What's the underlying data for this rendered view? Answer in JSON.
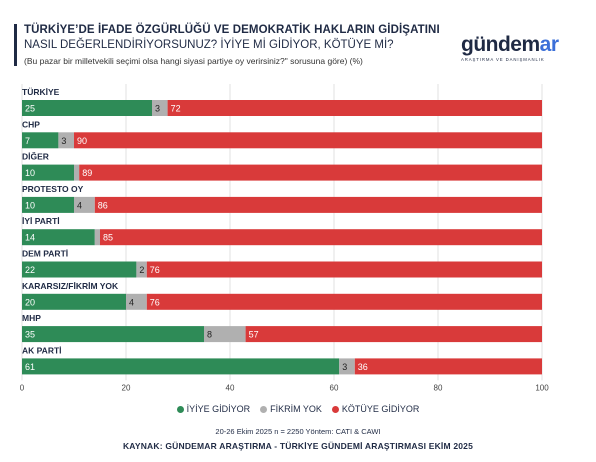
{
  "header": {
    "title_line1": "TÜRKİYE’DE İFADE ÖZGÜRLÜĞÜ VE DEMOKRATİK HAKLARIN GİDİŞATINI",
    "title_line2": "NASIL DEĞERLENDİRİYORSUNUZ? İYİYE Mİ GİDİYOR, KÖTÜYE Mİ?",
    "subtitle": "(Bu pazar bir milletvekili seçimi olsa hangi siyasi partiye oy verirsiniz?\" sorusuna göre) (%)"
  },
  "logo": {
    "main_prefix": "gündem",
    "main_highlight": "ar",
    "tagline": "ARAŞTIRMA VE DANIŞMANLIK"
  },
  "chart_data": {
    "type": "bar",
    "orientation": "horizontal",
    "stacked": true,
    "categories": [
      "TÜRKİYE",
      "CHP",
      "DİĞER",
      "PROTESTO OY",
      "İYİ PARTİ",
      "DEM PARTİ",
      "KARARSIZ/FİKRİM YOK",
      "MHP",
      "AK PARTİ"
    ],
    "series": [
      {
        "name": "İYİYE GİDİYOR",
        "color": "#2e8b57",
        "values": [
          25,
          7,
          10,
          10,
          14,
          22,
          20,
          35,
          61
        ]
      },
      {
        "name": "FİKRİM YOK",
        "color": "#b0b0b0",
        "values": [
          3,
          3,
          1,
          4,
          1,
          2,
          4,
          8,
          3
        ]
      },
      {
        "name": "KÖTÜYE GİDİYOR",
        "color": "#d93a3a",
        "values": [
          72,
          90,
          89,
          86,
          85,
          76,
          76,
          57,
          36
        ]
      }
    ],
    "data_labels": [
      [
        "25",
        "3",
        "72"
      ],
      [
        "7",
        "3",
        "90"
      ],
      [
        "10",
        "",
        "89"
      ],
      [
        "10",
        "4",
        "86"
      ],
      [
        "14",
        "",
        "85"
      ],
      [
        "22",
        "2",
        "76"
      ],
      [
        "20",
        "4",
        "76"
      ],
      [
        "35",
        "8",
        "57"
      ],
      [
        "61",
        "3",
        "36"
      ]
    ],
    "xlim": [
      0,
      100
    ],
    "xticks": [
      0,
      20,
      40,
      60,
      80,
      100
    ],
    "grid": true,
    "legend_position": "bottom-center"
  },
  "footer": {
    "method": "20-26 Ekim 2025 n = 2250 Yöntem: CATI & CAWI",
    "source": "KAYNAK: GÜNDEMAR ARAŞTIRMA - TÜRKİYE GÜNDEMİ ARAŞTIRMASI EKİM 2025"
  }
}
